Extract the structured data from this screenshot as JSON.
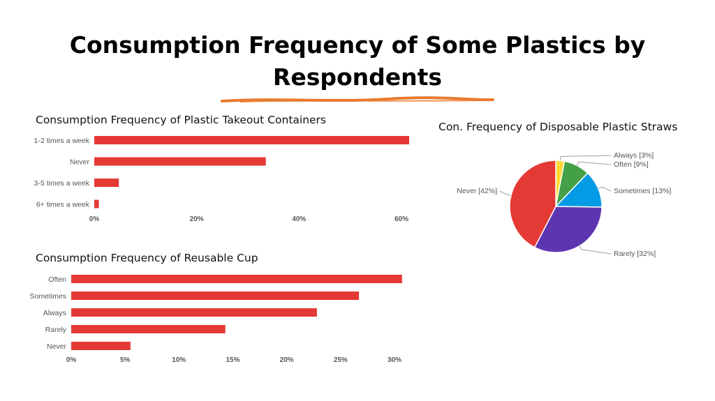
{
  "slide": {
    "title": "Consumption Frequency of Some Plastics by Respondents",
    "underline_color": "#e87a2e"
  },
  "chart_data": [
    {
      "type": "bar",
      "orientation": "horizontal",
      "title": "Consumption Frequency of Plastic Takeout Containers",
      "categories": [
        "1-2 times a week",
        "Never",
        "3-5 times a week",
        "6+ times a week"
      ],
      "values": [
        61.5,
        33.5,
        4.8,
        0.9
      ],
      "unit": "%",
      "xlim": [
        0,
        60
      ],
      "ticks": [
        0,
        20,
        40,
        60
      ],
      "tick_labels": [
        "0%",
        "20%",
        "40%",
        "60%"
      ],
      "color": "#e53935",
      "grid": false
    },
    {
      "type": "bar",
      "orientation": "horizontal",
      "title": "Consumption Frequency of Reusable Cup",
      "categories": [
        "Often",
        "Sometimes",
        "Always",
        "Rarely",
        "Never"
      ],
      "values": [
        30.7,
        26.7,
        22.8,
        14.3,
        5.5
      ],
      "unit": "%",
      "xlim": [
        0,
        30
      ],
      "ticks": [
        0,
        5,
        10,
        15,
        20,
        25,
        30
      ],
      "tick_labels": [
        "0%",
        "5%",
        "10%",
        "15%",
        "20%",
        "25%",
        "30%"
      ],
      "color": "#e53935",
      "grid": false
    },
    {
      "type": "pie",
      "title": "Con. Frequency of Disposable Plastic Straws",
      "categories": [
        "Always",
        "Often",
        "Sometimes",
        "Rarely",
        "Never"
      ],
      "values": [
        3,
        9,
        13,
        32,
        42
      ],
      "labels": [
        "Always [3%]",
        "Often [9%]",
        "Sometimes [13%]",
        "Rarely [32%]",
        "Never [42%]"
      ],
      "colors": [
        "#fdd835",
        "#43a047",
        "#039be5",
        "#5e35b1",
        "#e53935"
      ],
      "legend": "callout-labels"
    }
  ]
}
